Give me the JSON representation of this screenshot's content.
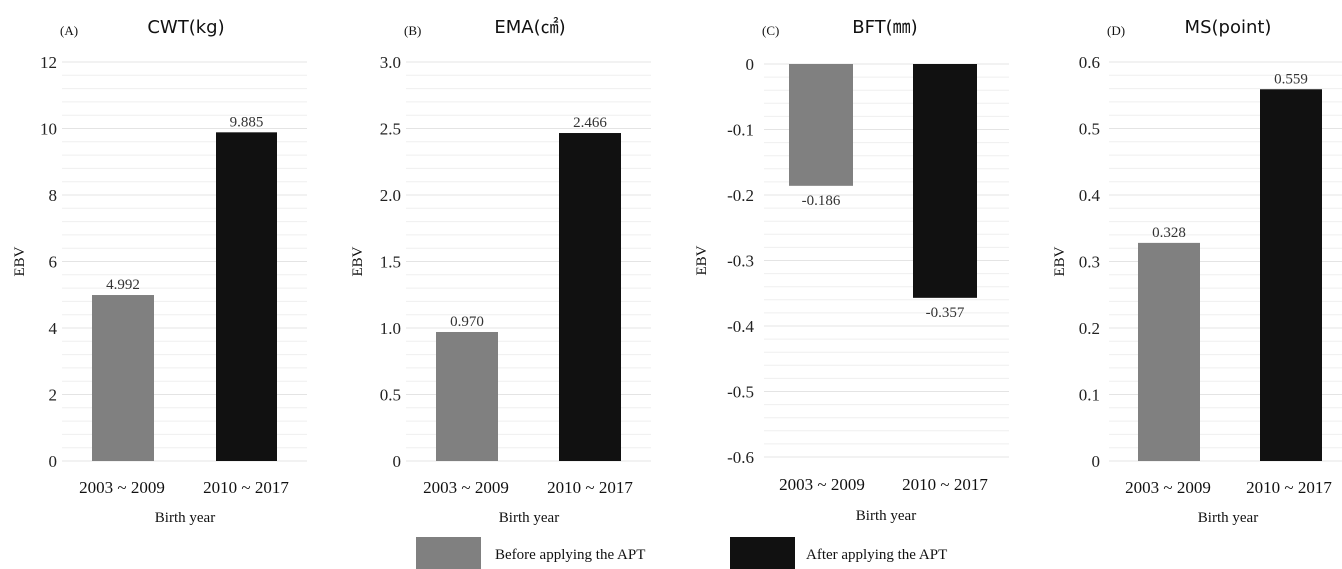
{
  "chart_data": [
    {
      "type": "bar",
      "panel": "(A)",
      "title": "CWT(kg)",
      "categories": [
        "2003 ~ 2009",
        "2010 ~ 2017"
      ],
      "values": [
        4.992,
        9.885
      ],
      "value_labels": [
        "4.992",
        "9.885"
      ],
      "ylim": [
        0,
        12
      ],
      "yticks": [
        0,
        2,
        4,
        6,
        8,
        10,
        12
      ],
      "ytick_labels": [
        "0",
        "2",
        "4",
        "6",
        "8",
        "10",
        "12"
      ],
      "ylabel": "EBV",
      "xlabel": "Birth year",
      "grid": true
    },
    {
      "type": "bar",
      "panel": "(B)",
      "title": "EMA(㎠)",
      "categories": [
        "2003 ~ 2009",
        "2010 ~ 2017"
      ],
      "values": [
        0.97,
        2.466
      ],
      "value_labels": [
        "0.970",
        "2.466"
      ],
      "ylim": [
        0,
        3.0
      ],
      "yticks": [
        0,
        0.5,
        1.0,
        1.5,
        2.0,
        2.5,
        3.0
      ],
      "ytick_labels": [
        "0",
        "0.5",
        "1.0",
        "1.5",
        "2.0",
        "2.5",
        "3.0"
      ],
      "ylabel": "EBV",
      "xlabel": "Birth year",
      "grid": true
    },
    {
      "type": "bar",
      "panel": "(C)",
      "title": "BFT(㎜)",
      "categories": [
        "2003 ~ 2009",
        "2010 ~ 2017"
      ],
      "values": [
        -0.186,
        -0.357
      ],
      "value_labels": [
        "-0.186",
        "-0.357"
      ],
      "ylim": [
        -0.6,
        0
      ],
      "yticks": [
        0,
        -0.1,
        -0.2,
        -0.3,
        -0.4,
        -0.5,
        -0.6
      ],
      "ytick_labels": [
        "0",
        "-0.1",
        "-0.2",
        "-0.3",
        "-0.4",
        "-0.5",
        "-0.6"
      ],
      "ylabel": "EBV",
      "xlabel": "Birth year",
      "grid": true
    },
    {
      "type": "bar",
      "panel": "(D)",
      "title": "MS(point)",
      "categories": [
        "2003 ~ 2009",
        "2010 ~ 2017"
      ],
      "values": [
        0.328,
        0.559
      ],
      "value_labels": [
        "0.328",
        "0.559"
      ],
      "ylim": [
        0,
        0.6
      ],
      "yticks": [
        0,
        0.1,
        0.2,
        0.3,
        0.4,
        0.5,
        0.6
      ],
      "ytick_labels": [
        "0",
        "0.1",
        "0.2",
        "0.3",
        "0.4",
        "0.5",
        "0.6"
      ],
      "ylabel": "EBV",
      "xlabel": "Birth year",
      "grid": true
    }
  ],
  "legend": {
    "placement": "bottom-center",
    "items": [
      {
        "label": "Before applying the APT",
        "color": "#808080"
      },
      {
        "label": "After applying the APT",
        "color": "#111111"
      }
    ]
  },
  "colors": {
    "before": "#808080",
    "after": "#111111",
    "grid": "#e4e4e4"
  }
}
